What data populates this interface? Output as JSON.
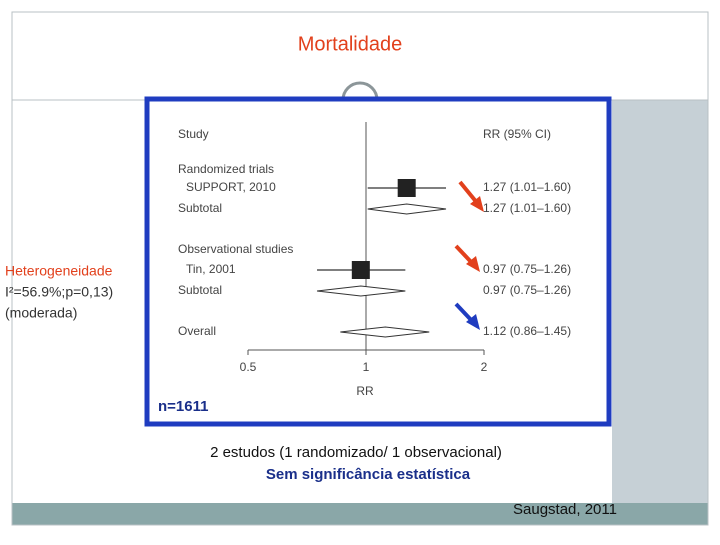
{
  "slide": {
    "title": "Mortalidade",
    "heterogeneity": [
      "Heterogeneidade",
      "I²=56.9%;p=0,13)",
      "(moderada)"
    ],
    "n": "n=1611",
    "summary": "2 estudos (1 randomizado/ 1 observacional)",
    "conclusion": "Sem significância estatística",
    "source": "Saugstad, 2011"
  },
  "chart_data": {
    "type": "forest",
    "study_header": "Study",
    "estimate_header": "RR (95% CI)",
    "xlabel": "RR",
    "log_scale": true,
    "xlim": [
      0.5,
      2
    ],
    "xticks": [
      0.5,
      1,
      2
    ],
    "rows": [
      {
        "label": "Randomized trials"
      },
      {
        "label": "SUPPORT, 2010",
        "marker": "square",
        "value": 1.27,
        "ci": [
          1.01,
          1.6
        ],
        "value_label": "1.27 (1.01–1.60)"
      },
      {
        "label": "Subtotal",
        "marker": "diamond",
        "value": 1.27,
        "ci": [
          1.01,
          1.6
        ],
        "value_label": "1.27 (1.01–1.60)"
      },
      {
        "label": "Observational studies"
      },
      {
        "label": "Tin, 2001",
        "marker": "square",
        "value": 0.97,
        "ci": [
          0.75,
          1.26
        ],
        "value_label": "0.97 (0.75–1.26)"
      },
      {
        "label": "Subtotal",
        "marker": "diamond",
        "value": 0.97,
        "ci": [
          0.75,
          1.26
        ],
        "value_label": "0.97 (0.75–1.26)"
      },
      {
        "label": "Overall",
        "marker": "diamond",
        "value": 1.12,
        "ci": [
          0.86,
          1.45
        ],
        "value_label": "1.12 (0.86–1.45)"
      }
    ]
  }
}
